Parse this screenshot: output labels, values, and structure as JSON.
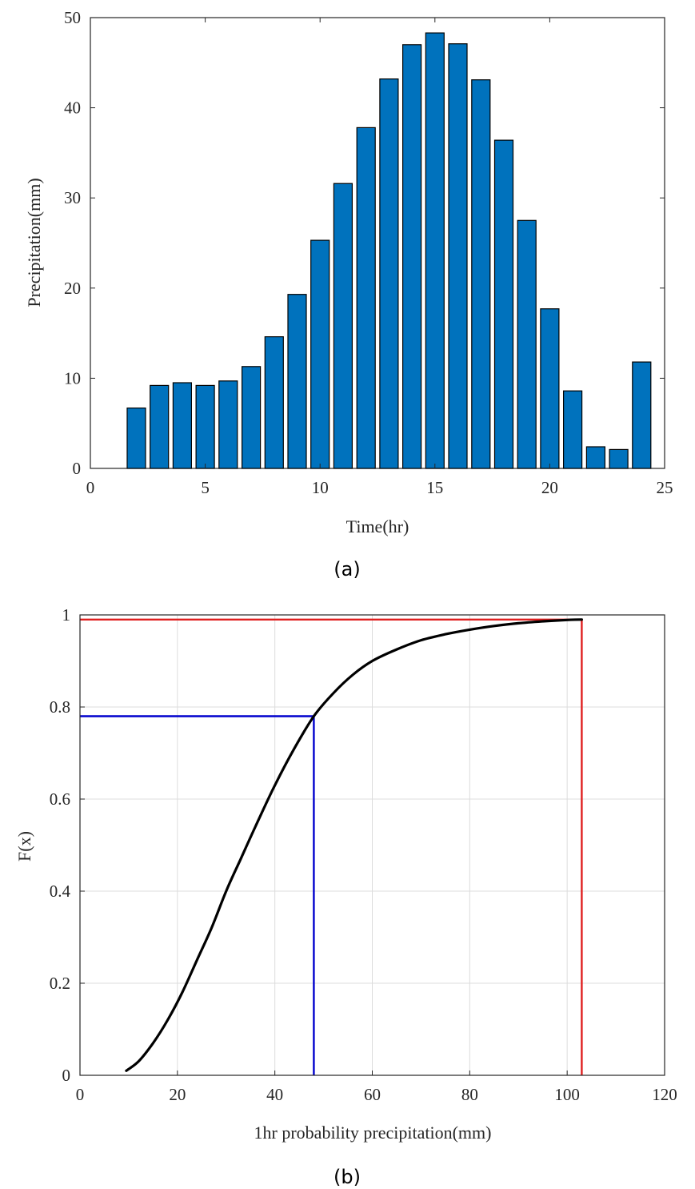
{
  "panels": [
    {
      "caption": "(a)",
      "chart_data": {
        "type": "bar",
        "title": "",
        "xlabel": "Time(hr)",
        "ylabel": "Precipitation(mm)",
        "xlim": [
          0,
          25
        ],
        "ylim": [
          0,
          50
        ],
        "xticks": [
          "0",
          "5",
          "10",
          "15",
          "20",
          "25"
        ],
        "yticks": [
          "0",
          "10",
          "20",
          "30",
          "40",
          "50"
        ],
        "grid": false,
        "color": "#0072BD",
        "x": [
          2,
          3,
          4,
          5,
          6,
          7,
          8,
          9,
          10,
          11,
          12,
          13,
          14,
          15,
          16,
          17,
          18,
          19,
          20,
          21,
          22,
          23,
          24
        ],
        "values": [
          6.7,
          9.2,
          9.5,
          9.2,
          9.7,
          11.3,
          14.6,
          19.3,
          25.3,
          31.6,
          37.8,
          43.2,
          47.0,
          48.3,
          47.1,
          43.1,
          36.4,
          27.5,
          17.7,
          8.6,
          2.4,
          2.1,
          11.8
        ]
      }
    },
    {
      "caption": "(b)",
      "chart_data": {
        "type": "line",
        "title": "",
        "xlabel": "1hr probability precipitation(mm)",
        "ylabel": "F(x)",
        "xlim": [
          0,
          120
        ],
        "ylim": [
          0,
          1
        ],
        "xticks": [
          "0",
          "20",
          "40",
          "60",
          "80",
          "100",
          "120"
        ],
        "yticks": [
          "0",
          "0.2",
          "0.4",
          "0.6",
          "0.8",
          "1"
        ],
        "grid": true,
        "series": [
          {
            "color": "#000000",
            "x": [
              9.5,
              12,
              15,
              18,
              21,
              24,
              27,
              30,
              33,
              36,
              40,
              44,
              48,
              52,
              56,
              60,
              65,
              70,
              75,
              80,
              85,
              90,
              95,
              100,
              103
            ],
            "y": [
              0.01,
              0.03,
              0.07,
              0.12,
              0.18,
              0.25,
              0.32,
              0.4,
              0.47,
              0.54,
              0.63,
              0.71,
              0.78,
              0.83,
              0.87,
              0.9,
              0.925,
              0.945,
              0.958,
              0.968,
              0.976,
              0.982,
              0.986,
              0.989,
              0.99
            ]
          }
        ],
        "guides": [
          {
            "color": "#0000CD",
            "x": 48,
            "y": 0.78
          },
          {
            "color": "#E02020",
            "x": 103,
            "y": 0.99
          }
        ]
      }
    }
  ]
}
